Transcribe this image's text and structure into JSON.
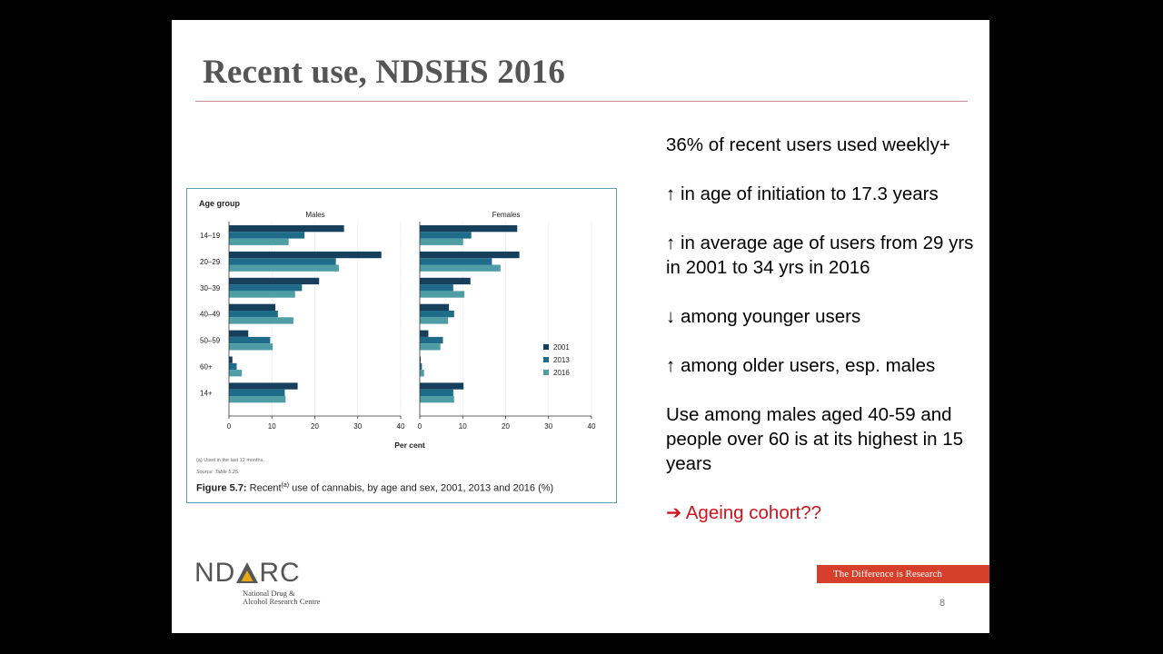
{
  "slide": {
    "title": "Recent use, NDSHS 2016",
    "page_number": "8"
  },
  "bullets": [
    {
      "text": "36% of recent users used weekly+",
      "accent": false
    },
    {
      "text": "↑ in age of initiation to 17.3 years",
      "accent": false
    },
    {
      "text": "↑ in average age of users from 29 yrs in 2001 to 34 yrs in 2016",
      "accent": false
    },
    {
      "text": "↓ among younger users",
      "accent": false
    },
    {
      "text": "↑ among older users, esp. males",
      "accent": false
    },
    {
      "text": "Use among males aged 40-59 and people over 60 is at its highest in 15 years",
      "accent": false
    },
    {
      "text": "➔ Ageing cohort??",
      "accent": true
    }
  ],
  "figure": {
    "footnote": "(a)  Used in the last 12 months.",
    "source": "Source: Table 5.25.",
    "caption_label": "Figure 5.7:",
    "caption_text_1": " Recent",
    "caption_sup": "(a)",
    "caption_text_2": " use of cannabis, by age and sex, 2001, 2013 and 2016 (%)"
  },
  "logo": {
    "word_left": "ND",
    "word_right": "RC",
    "subtitle": "National Drug &\nAlcohol Research Centre"
  },
  "tagline": "The Difference is Research",
  "colors": {
    "series_2001": "#163f5b",
    "series_2013": "#1f6c8a",
    "series_2016": "#4f9ea5",
    "accent": "#d0141c",
    "banner": "#d6402a",
    "logo_triangle": "#e6a817"
  },
  "chart_data": {
    "type": "bar",
    "orientation": "horizontal",
    "ylabel": "Age group",
    "xlabel": "Per cent",
    "categories": [
      "14–19",
      "20–29",
      "30–39",
      "40–49",
      "50–59",
      "60+",
      "14+"
    ],
    "xlim": [
      0,
      40
    ],
    "xticks": [
      0,
      10,
      20,
      30,
      40
    ],
    "legend_position": "right",
    "panels": [
      {
        "title": "Males",
        "series": [
          {
            "name": "2001",
            "values": [
              26.8,
              35.5,
              21.0,
              10.8,
              4.5,
              0.8,
              16.0
            ]
          },
          {
            "name": "2013",
            "values": [
              17.6,
              24.9,
              17.0,
              11.4,
              9.6,
              1.8,
              13.0
            ]
          },
          {
            "name": "2016",
            "values": [
              13.9,
              25.6,
              15.4,
              15.0,
              10.2,
              3.0,
              13.2
            ]
          }
        ]
      },
      {
        "title": "Females",
        "series": [
          {
            "name": "2001",
            "values": [
              22.7,
              23.2,
              11.8,
              6.8,
              2.0,
              0.2,
              10.2
            ]
          },
          {
            "name": "2013",
            "values": [
              12.0,
              16.8,
              7.8,
              8.0,
              5.4,
              0.5,
              7.8
            ]
          },
          {
            "name": "2016",
            "values": [
              10.1,
              18.8,
              10.4,
              6.6,
              4.8,
              1.0,
              8.0
            ]
          }
        ]
      }
    ]
  }
}
